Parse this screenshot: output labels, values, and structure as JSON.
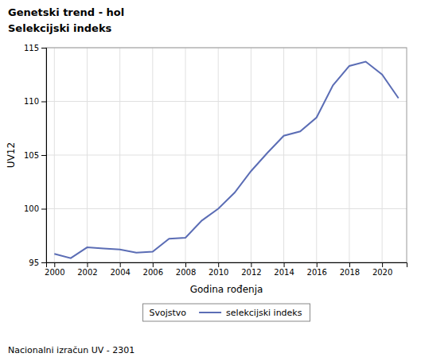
{
  "chart_data": {
    "type": "line",
    "title": "Genetski trend - hol",
    "subtitle": "Selekcijski indeks",
    "x_label": "Godina rođenja",
    "y_label": "UV12",
    "footnote": "Nacionalni izračun UV - 2301",
    "legend_title": "Svojstvo",
    "legend": "bottom",
    "grid": true,
    "x": [
      2000,
      2001,
      2002,
      2003,
      2004,
      2005,
      2006,
      2007,
      2008,
      2009,
      2010,
      2011,
      2012,
      2013,
      2014,
      2015,
      2016,
      2017,
      2018,
      2019,
      2020,
      2021
    ],
    "series": [
      {
        "name": "selekcijski indeks",
        "color": "#5b6db5",
        "values": [
          95.8,
          95.4,
          96.4,
          96.3,
          96.2,
          95.9,
          96.0,
          97.2,
          97.3,
          98.9,
          100.0,
          101.5,
          103.5,
          105.2,
          106.8,
          107.2,
          108.5,
          111.5,
          113.3,
          113.7,
          112.5,
          110.3
        ]
      }
    ],
    "xlim": [
      1999.5,
      2021.5
    ],
    "ylim": [
      95,
      115
    ],
    "xticks": [
      2000,
      2002,
      2004,
      2006,
      2008,
      2010,
      2012,
      2014,
      2016,
      2018,
      2020
    ],
    "yticks": [
      95,
      100,
      105,
      110,
      115
    ]
  }
}
